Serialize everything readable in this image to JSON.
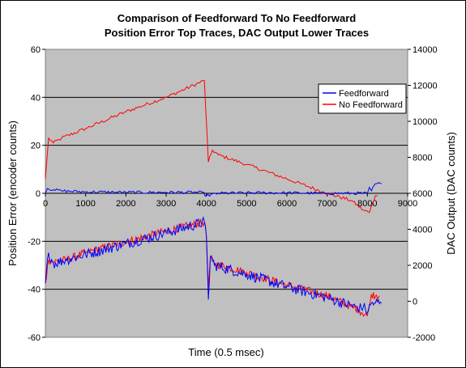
{
  "chart_data": {
    "type": "line",
    "title_line1": "Comparison of Feedforward To No Feedforward",
    "title_line2": "Position Error Top Traces, DAC Output Lower Traces",
    "xlabel": "Time (0.5 msec)",
    "ylabel_left": "Position Error (encoder counts)",
    "ylabel_right": "DAC Output  (DAC counts)",
    "xlim": [
      0,
      9000
    ],
    "ylim_left": [
      -60,
      60
    ],
    "ylim_right": [
      -2000,
      14000
    ],
    "x_ticks": [
      "0",
      "1000",
      "2000",
      "3000",
      "4000",
      "5000",
      "6000",
      "7000",
      "8000",
      "9000"
    ],
    "y_left_ticks": [
      "60",
      "40",
      "20",
      "0",
      "-20",
      "-40",
      "-60"
    ],
    "y_right_ticks": [
      "14000",
      "12000",
      "10000",
      "8000",
      "6000",
      "4000",
      "2000",
      "0",
      "-2000"
    ],
    "grid": "horizontal",
    "legend_position": "top-right",
    "series": [
      {
        "name": "Feedforward",
        "color": "#0000ff",
        "position_error": [
          [
            0,
            0
          ],
          [
            50,
            2
          ],
          [
            200,
            1.5
          ],
          [
            400,
            1
          ],
          [
            1000,
            0.6
          ],
          [
            2000,
            0.4
          ],
          [
            3000,
            0.4
          ],
          [
            3900,
            0.4
          ],
          [
            4000,
            -1
          ],
          [
            4300,
            0
          ],
          [
            5000,
            0.2
          ],
          [
            6000,
            0.2
          ],
          [
            7000,
            0
          ],
          [
            8000,
            0
          ],
          [
            8050,
            2.5
          ],
          [
            8100,
            1
          ],
          [
            8200,
            4
          ],
          [
            8350,
            4
          ]
        ],
        "dac_output": [
          [
            0,
            1000
          ],
          [
            80,
            2700
          ],
          [
            200,
            2100
          ],
          [
            500,
            2300
          ],
          [
            1000,
            2600
          ],
          [
            2000,
            3200
          ],
          [
            3000,
            3800
          ],
          [
            3950,
            4400
          ],
          [
            4000,
            3600
          ],
          [
            4050,
            100
          ],
          [
            4100,
            2500
          ],
          [
            4200,
            2000
          ],
          [
            5000,
            1500
          ],
          [
            6000,
            800
          ],
          [
            7000,
            200
          ],
          [
            7800,
            -400
          ],
          [
            7900,
            -300
          ],
          [
            8000,
            -600
          ],
          [
            8100,
            -100
          ],
          [
            8200,
            -100
          ],
          [
            8350,
            -100
          ]
        ]
      },
      {
        "name": "No Feedforward",
        "color": "#ff0000",
        "position_error": [
          [
            0,
            6
          ],
          [
            80,
            23
          ],
          [
            200,
            21
          ],
          [
            400,
            23
          ],
          [
            1000,
            27
          ],
          [
            2000,
            34
          ],
          [
            3000,
            40
          ],
          [
            3950,
            47
          ],
          [
            4050,
            13
          ],
          [
            4150,
            18
          ],
          [
            4300,
            16
          ],
          [
            5000,
            12
          ],
          [
            6000,
            6
          ],
          [
            7000,
            0
          ],
          [
            7600,
            -3
          ],
          [
            7900,
            -7
          ],
          [
            8050,
            -8
          ],
          [
            8200,
            -1
          ],
          [
            8250,
            -1
          ]
        ],
        "dac_output": [
          [
            0,
            1000
          ],
          [
            80,
            2300
          ],
          [
            200,
            2200
          ],
          [
            500,
            2300
          ],
          [
            1000,
            2700
          ],
          [
            2000,
            3300
          ],
          [
            3000,
            3900
          ],
          [
            3950,
            4400
          ],
          [
            4000,
            3600
          ],
          [
            4050,
            800
          ],
          [
            4100,
            2400
          ],
          [
            4200,
            2100
          ],
          [
            5000,
            1600
          ],
          [
            6000,
            900
          ],
          [
            7000,
            300
          ],
          [
            7800,
            -500
          ],
          [
            8000,
            -800
          ],
          [
            8050,
            -300
          ],
          [
            8100,
            400
          ],
          [
            8200,
            300
          ],
          [
            8300,
            300
          ]
        ]
      }
    ]
  }
}
